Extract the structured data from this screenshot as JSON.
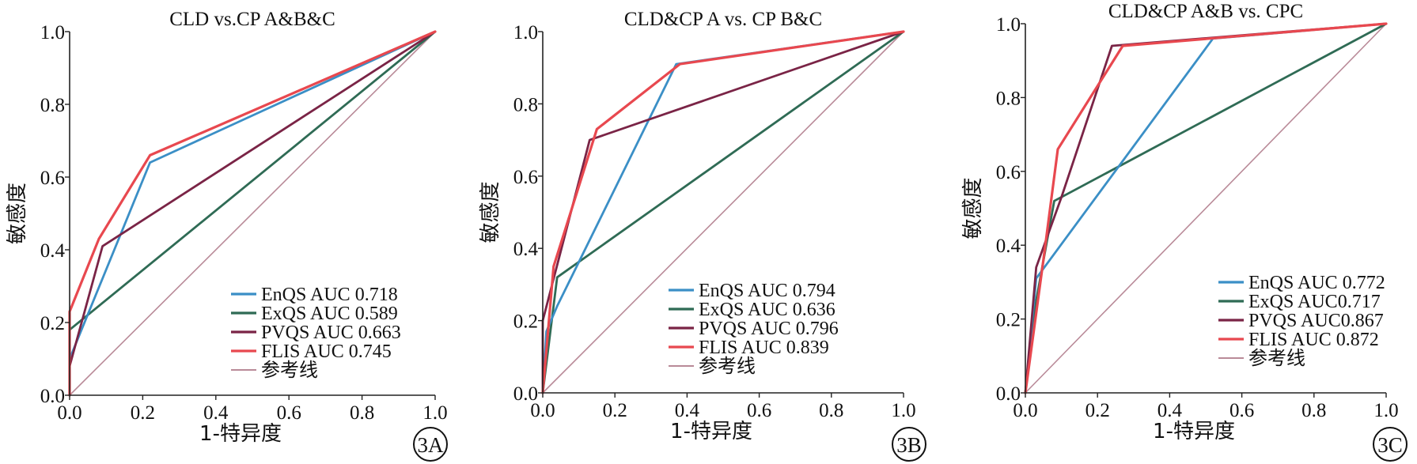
{
  "colors": {
    "EnQS": "#3b8fc6",
    "ExQS": "#2f6b55",
    "PVQS": "#7a2446",
    "FLIS": "#e8484f",
    "reference": "#b98a98",
    "axis": "#222222"
  },
  "panel_labels": [
    "3A",
    "3B",
    "3C"
  ],
  "chart_data": [
    {
      "type": "line",
      "title": "CLD vs.CP A&B&C",
      "xlabel": "1-特异度",
      "ylabel": "敏感度",
      "xlim": [
        0,
        1
      ],
      "ylim": [
        0,
        1
      ],
      "xticks": [
        "0.0",
        "0.2",
        "0.4",
        "0.6",
        "0.8",
        "1.0"
      ],
      "yticks": [
        "0.0",
        "0.2",
        "0.4",
        "0.6",
        "0.8",
        "1.0"
      ],
      "grid": false,
      "legend_position": "bottom-right",
      "series": [
        {
          "key": "EnQS",
          "name": "EnQS AUC 0.718",
          "points": [
            [
              0,
              0
            ],
            [
              0,
              0.1
            ],
            [
              0.22,
              0.64
            ],
            [
              1,
              1
            ]
          ]
        },
        {
          "key": "ExQS",
          "name": "ExQS AUC 0.589",
          "points": [
            [
              0,
              0
            ],
            [
              0,
              0.18
            ],
            [
              1,
              1
            ]
          ]
        },
        {
          "key": "PVQS",
          "name": "PVQS AUC 0.663",
          "points": [
            [
              0,
              0
            ],
            [
              0,
              0.08
            ],
            [
              0.09,
              0.41
            ],
            [
              1,
              1
            ]
          ]
        },
        {
          "key": "FLIS",
          "name": "FLIS AUC 0.745",
          "points": [
            [
              0,
              0
            ],
            [
              0,
              0.23
            ],
            [
              0.08,
              0.43
            ],
            [
              0.22,
              0.66
            ],
            [
              1,
              1
            ]
          ]
        },
        {
          "key": "reference",
          "name": "参考线",
          "points": [
            [
              0,
              0
            ],
            [
              1,
              1
            ]
          ]
        }
      ]
    },
    {
      "type": "line",
      "title": "CLD&CP A vs. CP B&C",
      "xlabel": "1-特异度",
      "ylabel": "敏感度",
      "xlim": [
        0,
        1
      ],
      "ylim": [
        0,
        1
      ],
      "xticks": [
        "0.0",
        "0.2",
        "0.4",
        "0.6",
        "0.8",
        "1.0"
      ],
      "yticks": [
        "0.0",
        "0.2",
        "0.4",
        "0.6",
        "0.8",
        "1.0"
      ],
      "grid": false,
      "legend_position": "bottom-right",
      "series": [
        {
          "key": "EnQS",
          "name": "EnQS AUC 0.794",
          "points": [
            [
              0,
              0
            ],
            [
              0.01,
              0.17
            ],
            [
              0.04,
              0.24
            ],
            [
              0.37,
              0.91
            ],
            [
              1,
              1
            ]
          ]
        },
        {
          "key": "ExQS",
          "name": "ExQS AUC 0.636",
          "points": [
            [
              0,
              0
            ],
            [
              0.04,
              0.32
            ],
            [
              1,
              1
            ]
          ]
        },
        {
          "key": "PVQS",
          "name": "PVQS AUC 0.796",
          "points": [
            [
              0,
              0
            ],
            [
              0,
              0.2
            ],
            [
              0.13,
              0.7
            ],
            [
              1,
              1
            ]
          ]
        },
        {
          "key": "FLIS",
          "name": "FLIS AUC 0.839",
          "points": [
            [
              0,
              0
            ],
            [
              0.03,
              0.35
            ],
            [
              0.15,
              0.73
            ],
            [
              0.38,
              0.91
            ],
            [
              1,
              1
            ]
          ]
        },
        {
          "key": "reference",
          "name": "参考线",
          "points": [
            [
              0,
              0
            ],
            [
              1,
              1
            ]
          ]
        }
      ]
    },
    {
      "type": "line",
      "title": "CLD&CP A&B vs. CPC",
      "xlabel": "1-特异度",
      "ylabel": "敏感度",
      "xlim": [
        0,
        1
      ],
      "ylim": [
        0,
        1
      ],
      "xticks": [
        "0.0",
        "0.2",
        "0.4",
        "0.6",
        "0.8",
        "1.0"
      ],
      "yticks": [
        "0.0",
        "0.2",
        "0.4",
        "0.6",
        "0.8",
        "1.0"
      ],
      "grid": false,
      "legend_position": "bottom-right",
      "series": [
        {
          "key": "EnQS",
          "name": "EnQS AUC 0.772",
          "points": [
            [
              0,
              0
            ],
            [
              0.03,
              0.31
            ],
            [
              0.52,
              0.96
            ],
            [
              1,
              1
            ]
          ]
        },
        {
          "key": "ExQS",
          "name": "ExQS AUC0.717",
          "points": [
            [
              0,
              0
            ],
            [
              0.03,
              0.25
            ],
            [
              0.08,
              0.52
            ],
            [
              1,
              1
            ]
          ]
        },
        {
          "key": "PVQS",
          "name": "PVQS AUC0.867",
          "points": [
            [
              0,
              0
            ],
            [
              0.03,
              0.34
            ],
            [
              0.1,
              0.53
            ],
            [
              0.24,
              0.94
            ],
            [
              1,
              1
            ]
          ]
        },
        {
          "key": "FLIS",
          "name": "FLIS AUC 0.872",
          "points": [
            [
              0,
              0
            ],
            [
              0.05,
              0.36
            ],
            [
              0.09,
              0.66
            ],
            [
              0.27,
              0.94
            ],
            [
              1,
              1
            ]
          ]
        },
        {
          "key": "reference",
          "name": "参考线",
          "points": [
            [
              0,
              0
            ],
            [
              1,
              1
            ]
          ]
        }
      ]
    }
  ]
}
